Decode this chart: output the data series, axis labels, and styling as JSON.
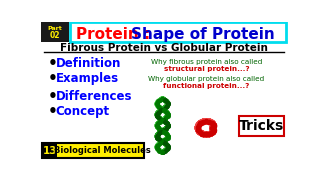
{
  "bg_color": "#ffffff",
  "title_part": "Protein : ",
  "title_main": "Shape of Protein",
  "title_part_color": "#ff0000",
  "title_main_color": "#0000cc",
  "subtitle": "Fibrous Protein vs Globular Protein",
  "subtitle_color": "#000000",
  "bullet_items": [
    "Definition",
    "Examples",
    "Differences",
    "Concept"
  ],
  "bullet_color": "#0000ff",
  "right_line1": "Why fibrous protein also called",
  "right_line2": "structural protein...?",
  "right_line3": "Why globular protein also called",
  "right_line4": "functional protein...?",
  "right_color_normal": "#006400",
  "right_color_red": "#cc0000",
  "tricks_text": "Tricks",
  "part_label": "Part 02",
  "part_bg": "#1a1a1a",
  "part_text_color": "#ffee00",
  "bottom_number": "13",
  "bottom_label": "Biological Molecules",
  "bottom_bg": "#ffee00",
  "bottom_num_bg": "#000000",
  "bottom_num_color": "#ffee00",
  "header_box_color": "#00ddee",
  "fibrous_color1": "#22aa22",
  "fibrous_color2": "#44cc44",
  "globular_color": "#ee3333"
}
